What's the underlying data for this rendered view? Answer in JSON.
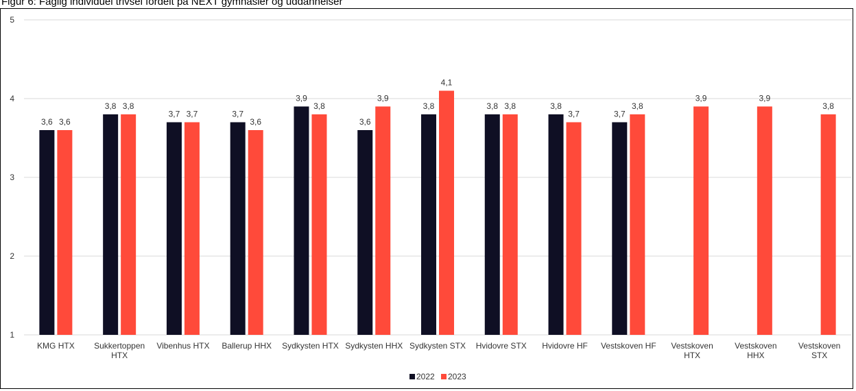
{
  "figure": {
    "title": "Figur 6: Faglig individuel trivsel fordelt på NEXT gymnasier og uddannelser"
  },
  "colors": {
    "series_2022": "#0f0f24",
    "series_2023": "#ff4a3a",
    "grid": "#d9d9d9"
  },
  "chart_data": {
    "type": "bar",
    "title": "",
    "xlabel": "",
    "ylabel": "",
    "ylim": [
      1,
      5
    ],
    "yticks": [
      1,
      2,
      3,
      4,
      5
    ],
    "grid": true,
    "legend_position": "bottom",
    "categories": [
      [
        "KMG HTX"
      ],
      [
        "Sukkertoppen",
        "HTX"
      ],
      [
        "Vibenhus HTX"
      ],
      [
        "Ballerup HHX"
      ],
      [
        "Sydkysten HTX"
      ],
      [
        "Sydkysten HHX"
      ],
      [
        "Sydkysten STX"
      ],
      [
        "Hvidovre STX"
      ],
      [
        "Hvidovre HF"
      ],
      [
        "Vestskoven HF"
      ],
      [
        "Vestskoven",
        "HTX"
      ],
      [
        "Vestskoven",
        "HHX"
      ],
      [
        "Vestskoven",
        "STX"
      ]
    ],
    "series": [
      {
        "name": "2022",
        "values": [
          3.6,
          3.8,
          3.7,
          3.7,
          3.9,
          3.6,
          3.8,
          3.8,
          3.8,
          3.7,
          null,
          null,
          null
        ],
        "labels": [
          "3,6",
          "3,8",
          "3,7",
          "3,7",
          "3,9",
          "3,6",
          "3,8",
          "3,8",
          "3,8",
          "3,7",
          "",
          "",
          ""
        ]
      },
      {
        "name": "2023",
        "values": [
          3.6,
          3.8,
          3.7,
          3.6,
          3.8,
          3.9,
          4.1,
          3.8,
          3.7,
          3.8,
          3.9,
          3.9,
          3.8
        ],
        "labels": [
          "3,6",
          "3,8",
          "3,7",
          "3,6",
          "3,8",
          "3,9",
          "4,1",
          "3,8",
          "3,7",
          "3,8",
          "3,9",
          "3,9",
          "3,8"
        ]
      }
    ]
  }
}
